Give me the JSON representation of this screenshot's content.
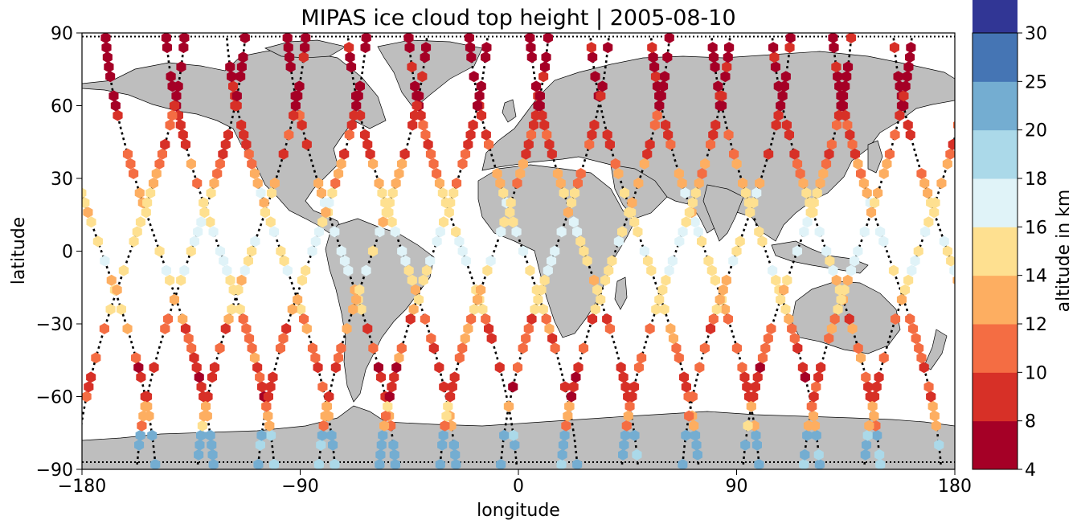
{
  "title": "MIPAS ice cloud top height | 2005-08-10",
  "xlabel": "longitude",
  "ylabel": "latitude",
  "colorbar_label": "altitude in km",
  "x_ticks": [
    "−180",
    "−90",
    "0",
    "90",
    "180"
  ],
  "y_ticks": [
    "90",
    "60",
    "30",
    "0",
    "−30",
    "−60",
    "−90"
  ],
  "colorbar_ticks": [
    "4",
    "8",
    "10",
    "12",
    "14",
    "16",
    "18",
    "20",
    "25",
    "30"
  ],
  "colors": {
    "land": "#bebebe",
    "coast": "#000000",
    "track": "#000000",
    "levels": [
      "#a50026",
      "#d73027",
      "#f46d43",
      "#fdae61",
      "#fee090",
      "#e0f3f8",
      "#abd9e9",
      "#74add1",
      "#4575b4",
      "#313695"
    ]
  },
  "chart_data": {
    "type": "map-scatter",
    "title": "MIPAS ice cloud top height | 2005-08-10",
    "xlabel": "longitude",
    "ylabel": "latitude",
    "xlim": [
      -180,
      180
    ],
    "ylim": [
      -90,
      90
    ],
    "colorbar": {
      "label": "altitude in km",
      "boundaries": [
        4,
        8,
        10,
        12,
        14,
        16,
        18,
        20,
        25,
        30
      ],
      "colors": [
        "#a50026",
        "#d73027",
        "#f46d43",
        "#fdae61",
        "#fee090",
        "#e0f3f8",
        "#abd9e9",
        "#74add1",
        "#4575b4",
        "#313695"
      ]
    },
    "orbits_ascending": [
      {
        "lon0": -172,
        "tilt": -16
      },
      {
        "lon0": -148,
        "tilt": -16
      },
      {
        "lon0": -123,
        "tilt": -16
      },
      {
        "lon0": -98,
        "tilt": -16
      },
      {
        "lon0": -73,
        "tilt": -16
      },
      {
        "lon0": -48,
        "tilt": -16
      },
      {
        "lon0": -23,
        "tilt": -16
      },
      {
        "lon0": 2,
        "tilt": -16
      },
      {
        "lon0": 27,
        "tilt": -16
      },
      {
        "lon0": 52,
        "tilt": -16
      },
      {
        "lon0": 77,
        "tilt": -16
      },
      {
        "lon0": 102,
        "tilt": -16
      },
      {
        "lon0": 127,
        "tilt": -16
      },
      {
        "lon0": 152,
        "tilt": -16
      },
      {
        "lon0": 177,
        "tilt": -16
      }
    ],
    "orbits_descending": [
      {
        "lon0": -160,
        "tilt": 16
      },
      {
        "lon0": -135,
        "tilt": 16
      },
      {
        "lon0": -110,
        "tilt": 16
      },
      {
        "lon0": -85,
        "tilt": 16
      },
      {
        "lon0": -60,
        "tilt": 16
      },
      {
        "lon0": -35,
        "tilt": 16
      },
      {
        "lon0": -10,
        "tilt": 16
      },
      {
        "lon0": 15,
        "tilt": 16
      },
      {
        "lon0": 40,
        "tilt": 16
      },
      {
        "lon0": 65,
        "tilt": 16
      },
      {
        "lon0": 90,
        "tilt": 16
      },
      {
        "lon0": 115,
        "tilt": 16
      },
      {
        "lon0": 140,
        "tilt": 16
      },
      {
        "lon0": 165,
        "tilt": 16
      }
    ],
    "altitude_by_latitude": [
      {
        "lat_min": 60,
        "lat_max": 90,
        "altitude_km": 7
      },
      {
        "lat_min": 40,
        "lat_max": 60,
        "altitude_km": 9.5
      },
      {
        "lat_min": 25,
        "lat_max": 40,
        "altitude_km": 12.5
      },
      {
        "lat_min": 10,
        "lat_max": 25,
        "altitude_km": 15
      },
      {
        "lat_min": -10,
        "lat_max": 10,
        "altitude_km": 16.5
      },
      {
        "lat_min": -25,
        "lat_max": -10,
        "altitude_km": 14.5
      },
      {
        "lat_min": -45,
        "lat_max": -25,
        "altitude_km": 11
      },
      {
        "lat_min": -62,
        "lat_max": -45,
        "altitude_km": 9
      },
      {
        "lat_min": -72,
        "lat_max": -62,
        "altitude_km": 13
      },
      {
        "lat_min": -90,
        "lat_max": -72,
        "altitude_km": 21
      }
    ]
  }
}
